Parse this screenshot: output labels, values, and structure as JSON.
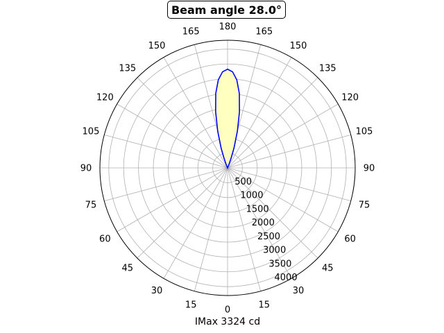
{
  "chart_data": {
    "type": "polar",
    "title": "Beam angle 28.0°",
    "xlabel": "IMax 3324 cd",
    "colors": {
      "curve": "#0000ff",
      "fill": "#ffffc0",
      "grid": "#b0b0b0",
      "frame": "#000000"
    },
    "angle_tick_labels": [
      "0",
      "15",
      "30",
      "45",
      "60",
      "75",
      "90",
      "105",
      "120",
      "135",
      "150",
      "165",
      "180",
      "165",
      "150",
      "135",
      "120",
      "105",
      "90",
      "75",
      "60",
      "45",
      "30",
      "15"
    ],
    "radial_tick_labels": [
      "500",
      "1000",
      "1500",
      "2000",
      "2500",
      "3000",
      "3500",
      "4000"
    ],
    "radial_ticks": [
      500,
      1000,
      1500,
      2000,
      2500,
      3000,
      3500,
      4000
    ],
    "rmax": 4300,
    "grid": true,
    "series": [
      {
        "angles_deg": [
          180,
          177,
          174,
          171,
          168,
          165,
          162,
          160,
          158,
          157
        ],
        "values": [
          3324,
          3240,
          2980,
          2540,
          1930,
          1280,
          700,
          360,
          120,
          0
        ]
      }
    ]
  }
}
